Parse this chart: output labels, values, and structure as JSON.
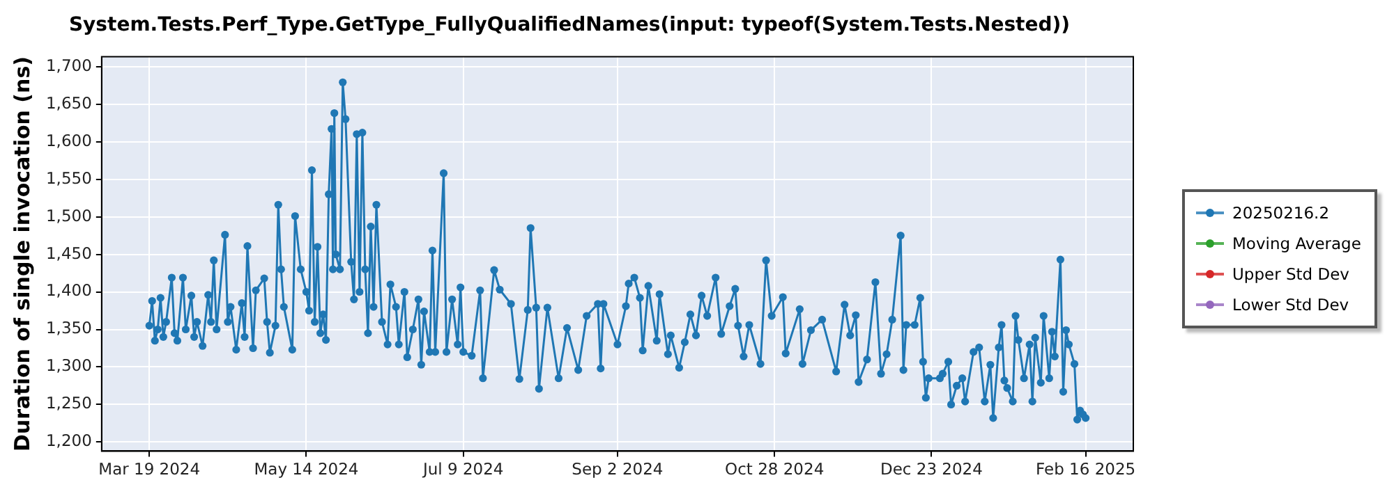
{
  "chart_data": {
    "type": "line",
    "title": "System.Tests.Perf_Type.GetType_FullyQualifiedNames(input: typeof(System.Tests.Nested))",
    "ylabel": "Duration of single invocation (ns)",
    "xlim": [
      "2024-03-02",
      "2025-03-05"
    ],
    "ylim": [
      1188,
      1713
    ],
    "xticks": [
      {
        "value": "2024-03-19",
        "label": "Mar 19 2024"
      },
      {
        "value": "2024-05-14",
        "label": "May 14 2024"
      },
      {
        "value": "2024-07-09",
        "label": "Jul 9 2024"
      },
      {
        "value": "2024-09-02",
        "label": "Sep 2 2024"
      },
      {
        "value": "2024-10-28",
        "label": "Oct 28 2024"
      },
      {
        "value": "2024-12-23",
        "label": "Dec 23 2024"
      },
      {
        "value": "2025-02-16",
        "label": "Feb 16 2025"
      }
    ],
    "yticks": [
      {
        "value": 1200,
        "label": "1,200"
      },
      {
        "value": 1250,
        "label": "1,250"
      },
      {
        "value": 1300,
        "label": "1,300"
      },
      {
        "value": 1350,
        "label": "1,350"
      },
      {
        "value": 1400,
        "label": "1,400"
      },
      {
        "value": 1450,
        "label": "1,450"
      },
      {
        "value": 1500,
        "label": "1,500"
      },
      {
        "value": 1550,
        "label": "1,550"
      },
      {
        "value": 1600,
        "label": "1,600"
      },
      {
        "value": 1650,
        "label": "1,650"
      },
      {
        "value": 1700,
        "label": "1,700"
      }
    ],
    "grid": true,
    "legend": "right",
    "marker": "circle",
    "line_style": "solid",
    "series": [
      {
        "name": "20250216.2",
        "color": "#1f77b4",
        "x": [
          "2024-03-19",
          "2024-03-20",
          "2024-03-21",
          "2024-03-22",
          "2024-03-23",
          "2024-03-24",
          "2024-03-25",
          "2024-03-27",
          "2024-03-28",
          "2024-03-29",
          "2024-03-31",
          "2024-04-01",
          "2024-04-03",
          "2024-04-04",
          "2024-04-05",
          "2024-04-07",
          "2024-04-09",
          "2024-04-10",
          "2024-04-11",
          "2024-04-12",
          "2024-04-15",
          "2024-04-16",
          "2024-04-17",
          "2024-04-19",
          "2024-04-21",
          "2024-04-22",
          "2024-04-23",
          "2024-04-25",
          "2024-04-26",
          "2024-04-29",
          "2024-04-30",
          "2024-05-01",
          "2024-05-03",
          "2024-05-04",
          "2024-05-05",
          "2024-05-06",
          "2024-05-09",
          "2024-05-10",
          "2024-05-12",
          "2024-05-14",
          "2024-05-15",
          "2024-05-16",
          "2024-05-17",
          "2024-05-18",
          "2024-05-19",
          "2024-05-20",
          "2024-05-21",
          "2024-05-22",
          "2024-05-23",
          "2024-05-23T12:00",
          "2024-05-24",
          "2024-05-24T12:00",
          "2024-05-26",
          "2024-05-27",
          "2024-05-28",
          "2024-05-30",
          "2024-05-31",
          "2024-06-01",
          "2024-06-02",
          "2024-06-03",
          "2024-06-04",
          "2024-06-05",
          "2024-06-06",
          "2024-06-07",
          "2024-06-08",
          "2024-06-10",
          "2024-06-12",
          "2024-06-13",
          "2024-06-15",
          "2024-06-16",
          "2024-06-18",
          "2024-06-19",
          "2024-06-21",
          "2024-06-23",
          "2024-06-24",
          "2024-06-25",
          "2024-06-27",
          "2024-06-28",
          "2024-06-29",
          "2024-07-02",
          "2024-07-03",
          "2024-07-05",
          "2024-07-07",
          "2024-07-08",
          "2024-07-09",
          "2024-07-12",
          "2024-07-15",
          "2024-07-16",
          "2024-07-20",
          "2024-07-22",
          "2024-07-26",
          "2024-07-29",
          "2024-08-01",
          "2024-08-02",
          "2024-08-04",
          "2024-08-05",
          "2024-08-08",
          "2024-08-12",
          "2024-08-15",
          "2024-08-19",
          "2024-08-22",
          "2024-08-26",
          "2024-08-27",
          "2024-08-28",
          "2024-09-02",
          "2024-09-05",
          "2024-09-06",
          "2024-09-08",
          "2024-09-10",
          "2024-09-11",
          "2024-09-13",
          "2024-09-16",
          "2024-09-17",
          "2024-09-20",
          "2024-09-21",
          "2024-09-24",
          "2024-09-26",
          "2024-09-28",
          "2024-09-30",
          "2024-10-02",
          "2024-10-04",
          "2024-10-07",
          "2024-10-09",
          "2024-10-12",
          "2024-10-14",
          "2024-10-15",
          "2024-10-17",
          "2024-10-19",
          "2024-10-23",
          "2024-10-25",
          "2024-10-27",
          "2024-10-31",
          "2024-11-01",
          "2024-11-06",
          "2024-11-07",
          "2024-11-10",
          "2024-11-14",
          "2024-11-19",
          "2024-11-22",
          "2024-11-24",
          "2024-11-26",
          "2024-11-27",
          "2024-11-30",
          "2024-12-03",
          "2024-12-05",
          "2024-12-07",
          "2024-12-09",
          "2024-12-12",
          "2024-12-13",
          "2024-12-14",
          "2024-12-17",
          "2024-12-19",
          "2024-12-20",
          "2024-12-21",
          "2024-12-22",
          "2024-12-26",
          "2024-12-27",
          "2024-12-29",
          "2024-12-30",
          "2025-01-01",
          "2025-01-03",
          "2025-01-04",
          "2025-01-07",
          "2025-01-09",
          "2025-01-11",
          "2025-01-13",
          "2025-01-14",
          "2025-01-16",
          "2025-01-17",
          "2025-01-18",
          "2025-01-19",
          "2025-01-21",
          "2025-01-22",
          "2025-01-23",
          "2025-01-25",
          "2025-01-27",
          "2025-01-28",
          "2025-01-29",
          "2025-01-31",
          "2025-02-01",
          "2025-02-03",
          "2025-02-04",
          "2025-02-05",
          "2025-02-07",
          "2025-02-08",
          "2025-02-09",
          "2025-02-10",
          "2025-02-12",
          "2025-02-13",
          "2025-02-14",
          "2025-02-15",
          "2025-02-16"
        ],
        "values": [
          1355,
          1388,
          1335,
          1350,
          1392,
          1340,
          1360,
          1419,
          1345,
          1335,
          1419,
          1350,
          1395,
          1340,
          1360,
          1328,
          1396,
          1360,
          1442,
          1350,
          1476,
          1360,
          1380,
          1323,
          1385,
          1340,
          1461,
          1325,
          1402,
          1418,
          1360,
          1319,
          1355,
          1516,
          1430,
          1380,
          1323,
          1501,
          1430,
          1400,
          1375,
          1562,
          1360,
          1460,
          1345,
          1370,
          1336,
          1530,
          1617,
          1430,
          1638,
          1450,
          1430,
          1679,
          1630,
          1440,
          1390,
          1610,
          1400,
          1612,
          1430,
          1345,
          1487,
          1380,
          1516,
          1360,
          1330,
          1410,
          1380,
          1330,
          1400,
          1313,
          1350,
          1390,
          1303,
          1374,
          1320,
          1455,
          1320,
          1558,
          1320,
          1390,
          1330,
          1406,
          1320,
          1315,
          1402,
          1285,
          1429,
          1403,
          1384,
          1284,
          1376,
          1485,
          1379,
          1271,
          1379,
          1285,
          1352,
          1296,
          1368,
          1384,
          1298,
          1384,
          1330,
          1381,
          1411,
          1419,
          1392,
          1322,
          1408,
          1335,
          1397,
          1317,
          1342,
          1299,
          1333,
          1370,
          1342,
          1395,
          1368,
          1419,
          1344,
          1381,
          1404,
          1355,
          1314,
          1356,
          1304,
          1442,
          1368,
          1393,
          1318,
          1377,
          1304,
          1349,
          1363,
          1294,
          1383,
          1342,
          1369,
          1280,
          1310,
          1413,
          1291,
          1317,
          1363,
          1475,
          1296,
          1356,
          1356,
          1392,
          1307,
          1259,
          1285,
          1285,
          1291,
          1307,
          1250,
          1275,
          1285,
          1254,
          1320,
          1326,
          1254,
          1303,
          1232,
          1326,
          1356,
          1282,
          1272,
          1254,
          1368,
          1336,
          1285,
          1330,
          1254,
          1339,
          1279,
          1368,
          1285,
          1347,
          1314,
          1443,
          1267,
          1349,
          1330,
          1304,
          1230,
          1242,
          1237,
          1232
        ]
      },
      {
        "name": "Moving Average",
        "color": "#2ca02c"
      },
      {
        "name": "Upper Std Dev",
        "color": "#d62728"
      },
      {
        "name": "Lower Std Dev",
        "color": "#9467bd"
      }
    ]
  }
}
